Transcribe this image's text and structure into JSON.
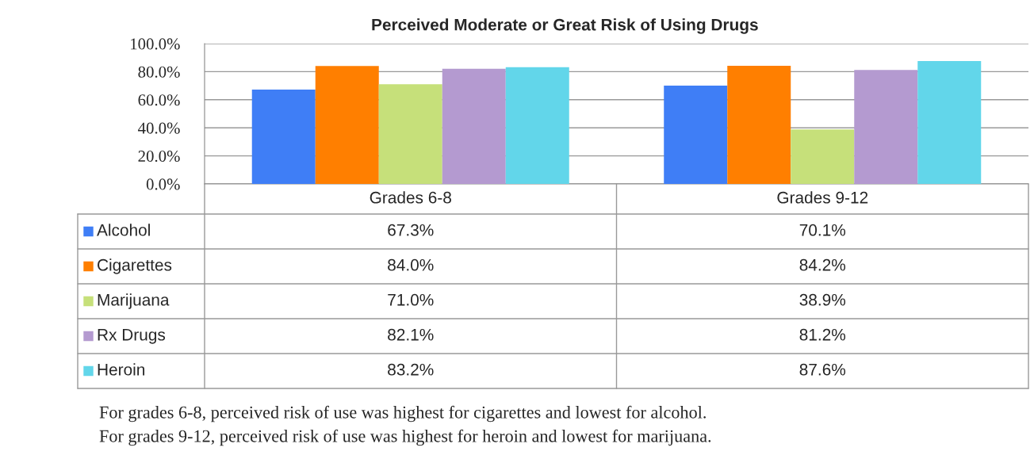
{
  "chart_data": {
    "type": "bar",
    "title": "Perceived Moderate or Great Risk of Using Drugs",
    "categories": [
      "Grades 6-8",
      "Grades 9-12"
    ],
    "series": [
      {
        "name": "Alcohol",
        "color": "#3f7ef6",
        "values": [
          67.3,
          70.1
        ],
        "value_labels": [
          "67.3%",
          "70.1%"
        ]
      },
      {
        "name": "Cigarettes",
        "color": "#ff7f00",
        "values": [
          84.0,
          84.2
        ],
        "value_labels": [
          "84.0%",
          "84.2%"
        ]
      },
      {
        "name": "Marijuana",
        "color": "#c6e07a",
        "values": [
          71.0,
          38.9
        ],
        "value_labels": [
          "71.0%",
          "38.9%"
        ]
      },
      {
        "name": "Rx Drugs",
        "color": "#b49ad0",
        "values": [
          82.1,
          81.2
        ],
        "value_labels": [
          "82.1%",
          "81.2%"
        ]
      },
      {
        "name": "Heroin",
        "color": "#62d6ea",
        "values": [
          83.2,
          87.6
        ],
        "value_labels": [
          "83.2%",
          "87.6%"
        ]
      }
    ],
    "ylim": [
      0,
      100
    ],
    "yticks": [
      {
        "value": 0,
        "label": "0.0%"
      },
      {
        "value": 20,
        "label": "20.0%"
      },
      {
        "value": 40,
        "label": "40.0%"
      },
      {
        "value": 60,
        "label": "60.0%"
      },
      {
        "value": 80,
        "label": "80.0%"
      },
      {
        "value": 100,
        "label": "100.0%"
      }
    ],
    "grid": "y",
    "legend": "bottom",
    "annotations": [
      "For grades 6-8, perceived risk of use was highest for cigarettes and lowest for alcohol.",
      "For grades 9-12, perceived risk of use was highest for heroin and lowest for marijuana."
    ]
  }
}
